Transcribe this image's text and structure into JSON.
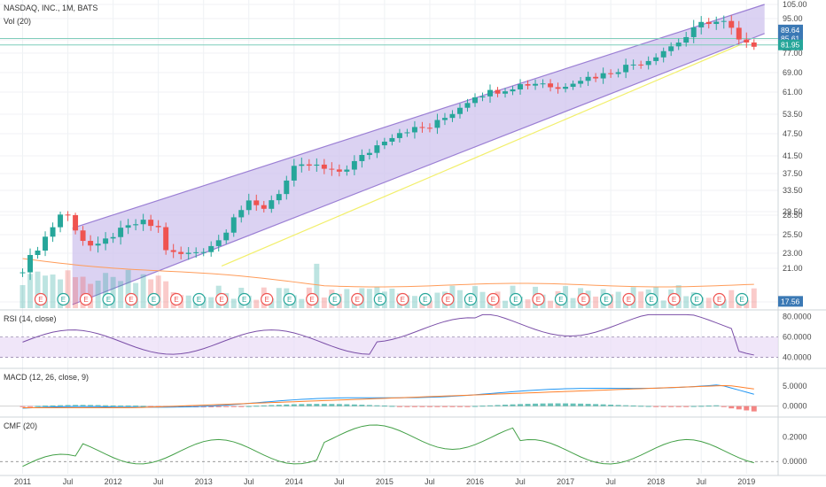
{
  "chart_data": {
    "type": "candlestick",
    "header": {
      "title": "NASDAQ, INC., 1M, BATS",
      "volume_label": "Vol (20)"
    },
    "x_axis": {
      "ticks": [
        "2011",
        "Jul",
        "2012",
        "Jul",
        "2013",
        "Jul",
        "2014",
        "Jul",
        "2015",
        "Jul",
        "2016",
        "Jul",
        "2017",
        "Jul",
        "2018",
        "Jul",
        "2019"
      ]
    },
    "price": {
      "ticks": [
        17.5,
        21.0,
        23.0,
        25.5,
        28.5,
        29.5,
        33.5,
        37.5,
        41.5,
        47.5,
        53.5,
        61.0,
        69.0,
        77.0,
        85.0,
        95.0,
        105.0
      ],
      "tick_labels": [
        "17.50",
        "21.00",
        "23.00",
        "25.50",
        "28.50",
        "29.50",
        "33.50",
        "37.50",
        "41.50",
        "47.50",
        "53.50",
        "61.00",
        "69.00",
        "77.00",
        "85.00",
        "95.00",
        "105.00"
      ],
      "badges": [
        {
          "value": 89.64,
          "text": "89.64",
          "color": "#3b79b5"
        },
        {
          "value": 85.61,
          "text": "85.61",
          "color": "#3b79b5"
        },
        {
          "value": 81.95,
          "text": "81.95",
          "color": "#26a69a"
        },
        {
          "value": 17.56,
          "text": "17.56",
          "color": "#3b79b5"
        }
      ],
      "up_color": "#26a69a",
      "down_color": "#ef5350",
      "channel_fill": "#cfc3ee",
      "channel_line": "#9b7fd4",
      "trendline_color": "#f2ef6c",
      "ma_color": "#ff9c5a",
      "horizontal_lines": [
        85.61,
        81.95
      ]
    },
    "events_label": "E",
    "rsi": {
      "label": "RSI (14, close)",
      "ticks": [
        80,
        60,
        40
      ],
      "tick_labels": [
        "80.0000",
        "60.0000",
        "40.0000"
      ],
      "range": [
        30,
        85
      ]
    },
    "macd": {
      "label": "MACD (12, 26, close, 9)",
      "ticks": [
        5,
        0
      ],
      "tick_labels": [
        "5.0000",
        "0.0000"
      ],
      "range": [
        -2.5,
        9
      ]
    },
    "cmf": {
      "label": "CMF (20)",
      "ticks": [
        0.2,
        0
      ],
      "tick_labels": [
        "0.2000",
        "0.0000"
      ],
      "range": [
        -0.1,
        0.35
      ]
    }
  }
}
